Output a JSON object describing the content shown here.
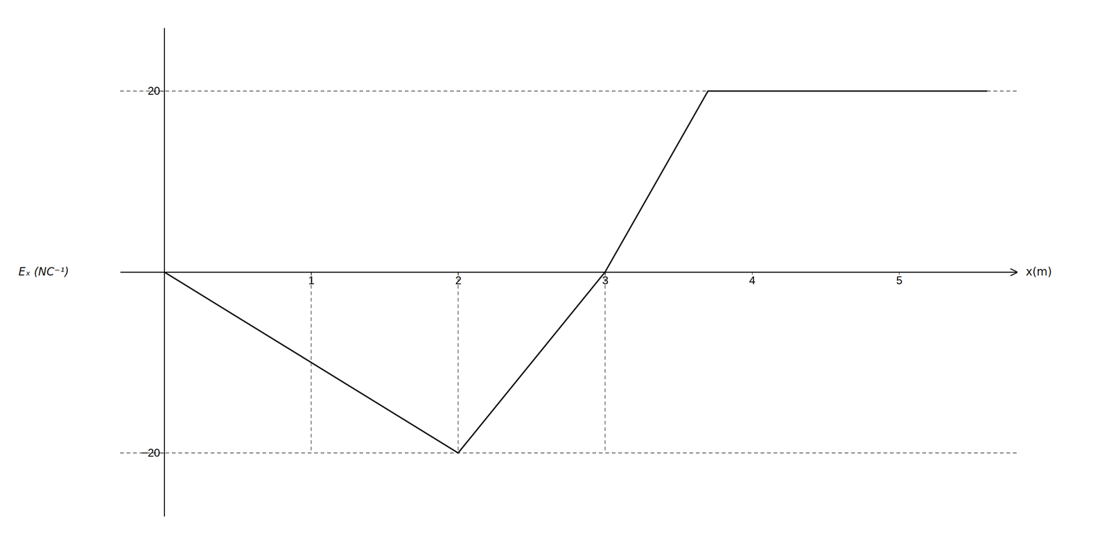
{
  "chart_data": {
    "type": "line",
    "x": [
      0,
      2,
      3,
      3.7,
      5.6
    ],
    "values": [
      0,
      -20,
      0,
      20,
      20
    ],
    "color": "#111111",
    "xlabel": "x(m)",
    "ylabel": "Eₓ (NC⁻¹)",
    "xlim": [
      -0.3,
      5.8
    ],
    "ylim": [
      -27,
      27
    ],
    "xticks": [
      1,
      2,
      3,
      4,
      5
    ],
    "yticks": [
      {
        "value": -20,
        "label": "−20"
      },
      20
    ],
    "h_lines": [
      20,
      -20
    ],
    "v_lines": [
      {
        "x": 1,
        "from": 0,
        "to": -20
      },
      {
        "x": 2,
        "from": 0,
        "to": -20
      },
      {
        "x": 3,
        "from": 0,
        "to": -20
      }
    ],
    "grid": false
  }
}
